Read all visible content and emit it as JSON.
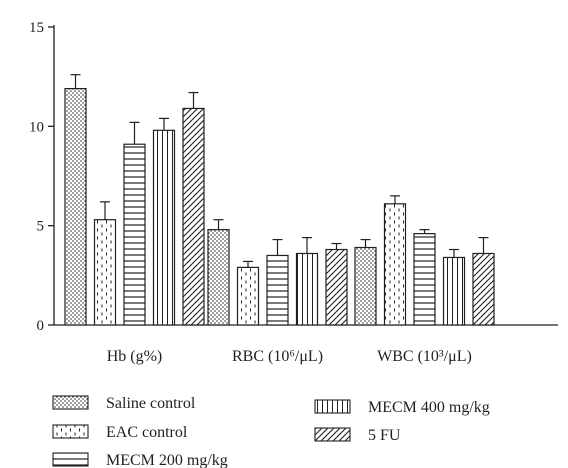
{
  "chart_data": {
    "type": "bar",
    "categories": [
      "Hb (g%)",
      "RBC (10⁶/μL)",
      "WBC (10³/μL)"
    ],
    "series": [
      {
        "name": "Saline control",
        "pattern": "dots",
        "values": [
          11.9,
          4.8,
          3.9
        ],
        "errors": [
          0.7,
          0.5,
          0.4
        ]
      },
      {
        "name": "EAC control",
        "pattern": "dashes",
        "values": [
          5.3,
          2.9,
          6.1
        ],
        "errors": [
          0.9,
          0.3,
          0.4
        ]
      },
      {
        "name": "MECM 200 mg/kg",
        "pattern": "horizontal",
        "values": [
          9.1,
          3.5,
          4.6
        ],
        "errors": [
          1.1,
          0.8,
          0.2
        ]
      },
      {
        "name": "MECM 400 mg/kg",
        "pattern": "vertical",
        "values": [
          9.8,
          3.6,
          3.4
        ],
        "errors": [
          0.6,
          0.8,
          0.4
        ]
      },
      {
        "name": "5 FU",
        "pattern": "diagonal",
        "values": [
          10.9,
          3.8,
          3.6
        ],
        "errors": [
          0.8,
          0.3,
          0.8
        ]
      }
    ],
    "yticks": [
      0,
      5,
      10,
      15
    ],
    "ylim": [
      0,
      15
    ],
    "grid": false,
    "legend_position": "bottom",
    "colors": {
      "ink": "#231f20",
      "background": "#ffffff"
    }
  }
}
